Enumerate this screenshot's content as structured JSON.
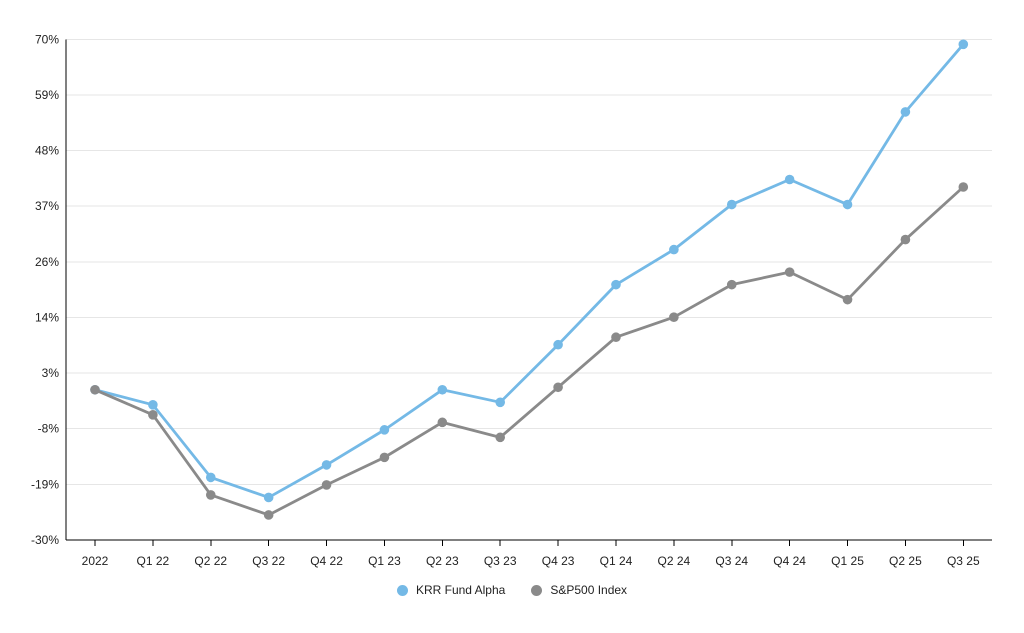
{
  "chart_data": {
    "type": "line",
    "categories": [
      "2022",
      "Q1 22",
      "Q2 22",
      "Q3 22",
      "Q4 22",
      "Q1 23",
      "Q2 23",
      "Q3 23",
      "Q4 23",
      "Q1 24",
      "Q2 24",
      "Q3 24",
      "Q4 24",
      "Q1 25",
      "Q2 25",
      "Q3 25"
    ],
    "series": [
      {
        "name": "KRR Fund Alpha",
        "color": "#74b9e6",
        "values": [
          0,
          -3,
          -17.5,
          -21.5,
          -15,
          -8,
          0,
          -2.5,
          9,
          21,
          28,
          37,
          42,
          37,
          55.5,
          69
        ]
      },
      {
        "name": "S&P500 Index",
        "color": "#8a8a8a",
        "values": [
          0,
          -5,
          -21,
          -25,
          -19,
          -13.5,
          -6.5,
          -9.5,
          0.5,
          10.5,
          14.5,
          21,
          23.5,
          18,
          30,
          40.5
        ]
      }
    ],
    "y_axis": {
      "min": -30,
      "max": 70,
      "tick_values": [
        70,
        58.89,
        47.78,
        36.67,
        25.56,
        14.44,
        3.33,
        -7.78,
        -18.89,
        -30
      ],
      "tick_labels": [
        "70%",
        "59%",
        "48%",
        "37%",
        "26%",
        "14%",
        "3%",
        "-8%",
        "-19%",
        "-30%"
      ],
      "unit": "%"
    },
    "grid": true,
    "legend_position": "bottom-center",
    "marker": "circle",
    "colors": {
      "gridline": "#e6e6e6",
      "axis": "#000000",
      "tick_text": "#222222",
      "background": "#ffffff"
    }
  }
}
